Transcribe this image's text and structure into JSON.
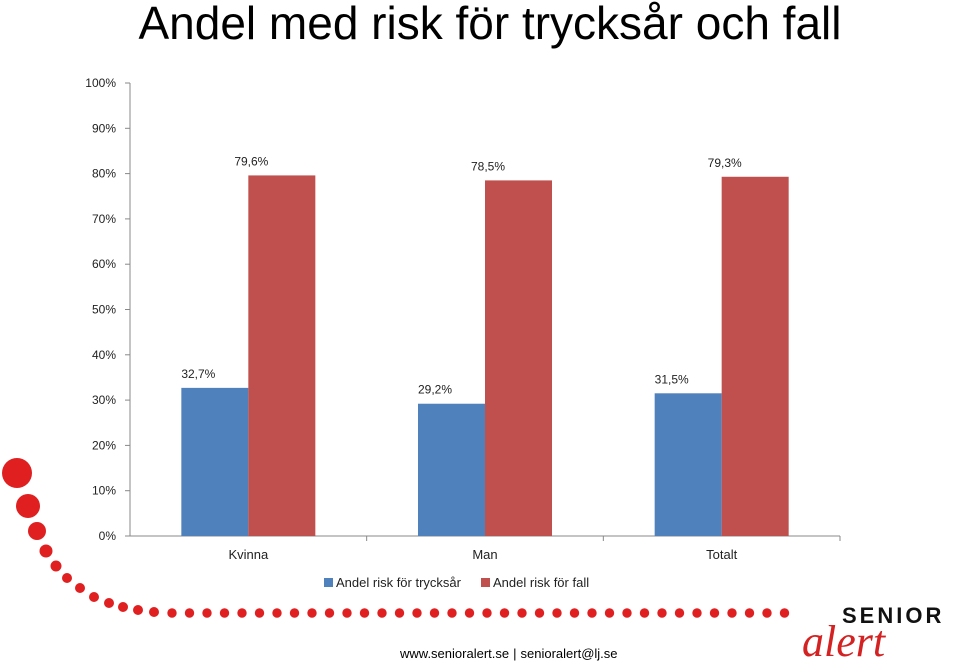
{
  "title": "Andel med risk för trycksår och fall",
  "colors": {
    "series1": "#4f81bd",
    "series2": "#c0504d",
    "dots": "#e02020"
  },
  "chart_data": {
    "type": "bar",
    "categories": [
      "Kvinna",
      "Man",
      "Totalt"
    ],
    "series": [
      {
        "name": "Andel risk för trycksår",
        "values": [
          32.7,
          29.2,
          31.5
        ],
        "labels": [
          "32,7%",
          "29,2%",
          "31,5%"
        ]
      },
      {
        "name": "Andel risk för fall",
        "values": [
          79.6,
          78.5,
          79.3
        ],
        "labels": [
          "79,6%",
          "78,5%",
          "79,3%"
        ]
      }
    ],
    "ylim": [
      0,
      100
    ],
    "yticks": [
      "0%",
      "10%",
      "20%",
      "30%",
      "40%",
      "50%",
      "60%",
      "70%",
      "80%",
      "90%",
      "100%"
    ],
    "legend": "bottom"
  },
  "footer": {
    "site": "www.senioralert.se",
    "separator": "|",
    "email": "senioralert@lj.se"
  },
  "logo": {
    "line1": "SENIOR",
    "line2": "alert"
  }
}
